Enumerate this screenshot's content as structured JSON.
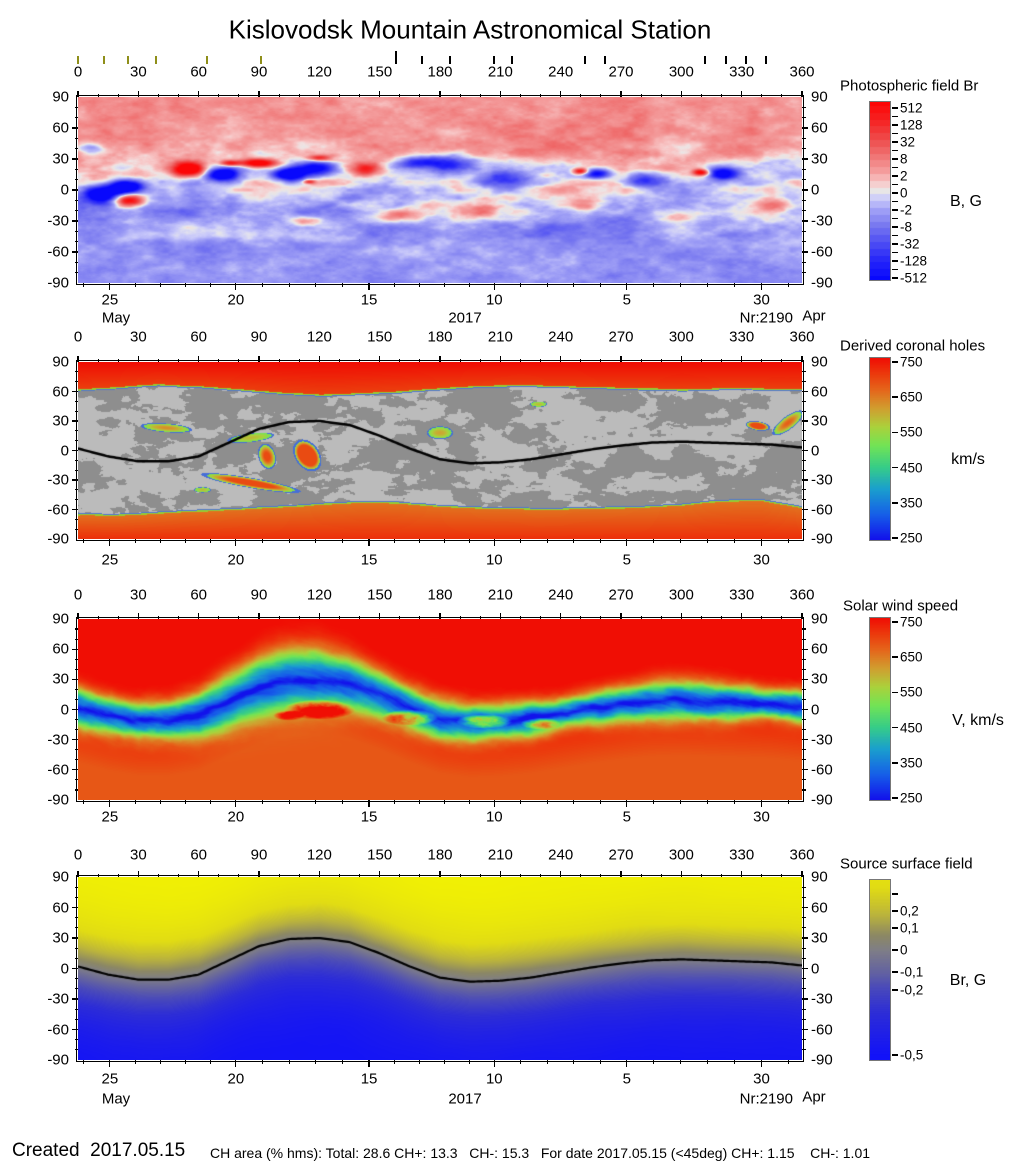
{
  "title": "Kislovodsk Mountain Astronomical Station",
  "axes": {
    "lon_labels": [
      0,
      30,
      60,
      90,
      120,
      150,
      180,
      210,
      240,
      270,
      300,
      330,
      360
    ],
    "lat_labels": [
      90,
      60,
      30,
      0,
      -30,
      -60,
      -90
    ],
    "date_labels": [
      "25",
      "20",
      "15",
      "10",
      "5",
      "30"
    ],
    "date_fracs": [
      0.044,
      0.218,
      0.402,
      0.575,
      0.758,
      0.944
    ],
    "month_left": "May",
    "year": "2017",
    "rotation_label": "Nr:2190",
    "month_right": "Apr"
  },
  "observation_ticks": {
    "olive_lons": [
      0,
      13,
      25,
      39,
      64,
      91
    ],
    "black_lons": [
      158,
      171,
      185,
      207,
      216,
      252,
      262,
      312,
      322,
      332,
      342
    ],
    "tall_black_lon": 158
  },
  "panels": [
    {
      "title": "Photospheric field Br",
      "unit": "B, G",
      "cb_ticks": [
        "512",
        "128",
        "32",
        "8",
        "2",
        "0",
        "-2",
        "-8",
        "-32",
        "-128",
        "-512"
      ]
    },
    {
      "title": "Derived coronal holes",
      "unit": "km/s",
      "cb_ticks": [
        "750",
        "650",
        "550",
        "450",
        "350",
        "250"
      ]
    },
    {
      "title": "Solar wind speed",
      "unit": "V, km/s",
      "cb_ticks": [
        "750",
        "650",
        "550",
        "450",
        "350",
        "250"
      ]
    },
    {
      "title": "Source surface field",
      "unit": "Br, G",
      "cb_ticks": [
        "0,2",
        "0,1",
        "0",
        "-0,1",
        "-0,2",
        "-0,5"
      ]
    }
  ],
  "footer": {
    "created": "Created  2017.05.15",
    "stats": "CH area (% hms): Total: 28.6 CH+: 13.3   CH-: 15.3   For date 2017.05.15 (<45deg) CH+: 1.15    CH-: 1.01"
  },
  "chart_data": [
    {
      "type": "heatmap",
      "title": "Photospheric field Br",
      "x_range": [
        0,
        360
      ],
      "y_range": [
        -90,
        90
      ],
      "colorbar_ticks_G": [
        512,
        128,
        32,
        8,
        2,
        0,
        -2,
        -8,
        -32,
        -128,
        -512
      ],
      "unit": "B, G",
      "colormap": {
        "positive": "#ff0000",
        "zero": "#e8e8e8",
        "negative": "#0000ff"
      },
      "polarity_background": {
        "north": "weak positive (light red)",
        "south": "weak negative (light blue)"
      },
      "active_regions": [
        [
          24,
          3,
          8,
          6,
          -2.8
        ],
        [
          12,
          -4,
          10,
          8,
          -2.6
        ],
        [
          26,
          -10,
          8,
          6,
          2.6
        ],
        [
          6,
          40,
          8,
          6,
          -1.2
        ],
        [
          55,
          20,
          9,
          7,
          3.0
        ],
        [
          72,
          15,
          8,
          6,
          -3.0
        ],
        [
          76,
          26,
          5,
          3,
          1.8
        ],
        [
          90,
          26,
          8,
          4,
          2.6
        ],
        [
          105,
          15,
          8,
          6,
          -3.0
        ],
        [
          118,
          21,
          10,
          7,
          -2.4
        ],
        [
          120,
          31,
          6,
          3,
          1.6
        ],
        [
          143,
          20,
          8,
          6,
          1.8
        ],
        [
          168,
          27,
          10,
          6,
          -1.8
        ],
        [
          115,
          8,
          3,
          2,
          1.5
        ],
        [
          185,
          25,
          12,
          8,
          -1.8
        ],
        [
          212,
          10,
          12,
          8,
          -1.4
        ],
        [
          250,
          18,
          4,
          3,
          2.2
        ],
        [
          258,
          16,
          7,
          5,
          -2.2
        ],
        [
          282,
          10,
          10,
          7,
          -1.4
        ],
        [
          310,
          17,
          4,
          3,
          2.2
        ],
        [
          320,
          16,
          8,
          6,
          -2.2
        ],
        [
          200,
          -20,
          12,
          8,
          1.0
        ],
        [
          250,
          -15,
          10,
          6,
          0.9
        ],
        [
          300,
          -25,
          10,
          7,
          0.8
        ],
        [
          345,
          -15,
          8,
          6,
          0.7
        ],
        [
          160,
          -25,
          10,
          6,
          0.9
        ],
        [
          115,
          -30,
          9,
          5,
          0.8
        ]
      ]
    },
    {
      "type": "heatmap",
      "title": "Derived coronal holes",
      "x_range": [
        0,
        360
      ],
      "y_range": [
        -90,
        90
      ],
      "colorbar_ticks_kms": [
        750,
        650,
        550,
        450,
        350,
        250
      ],
      "unit": "km/s",
      "north_cap_boundary_lat": [
        61,
        63,
        66,
        64,
        61,
        58,
        56,
        57,
        59,
        62,
        64,
        65,
        64,
        63,
        62,
        61,
        62,
        62,
        61
      ],
      "south_cap_boundary_lat": [
        -65,
        -65,
        -63,
        -61,
        -59,
        -57,
        -54,
        -52,
        -53,
        -56,
        -58,
        -59,
        -59,
        -58,
        -57,
        -55,
        -51,
        -50,
        -57
      ],
      "boundary_lon_step": 20,
      "neutral_line": {
        "lon_step": 15,
        "lat": [
          2,
          -6,
          -11,
          -11,
          -6,
          8,
          22,
          29,
          30,
          26,
          15,
          2,
          -9,
          -13,
          -12,
          -9,
          -4,
          1,
          5,
          8,
          9,
          8,
          7,
          6,
          3
        ]
      },
      "equatorial_holes": [
        [
          44,
          23,
          12,
          4,
          -10,
          0.3
        ],
        [
          86,
          13,
          11,
          4,
          15,
          0.2
        ],
        [
          94,
          -6,
          4,
          12,
          5,
          0.5
        ],
        [
          114,
          -5,
          6,
          15,
          10,
          0.9
        ],
        [
          86,
          -33,
          24,
          4.5,
          -20,
          0.6
        ],
        [
          62,
          -40,
          4,
          2.5,
          0,
          0.2
        ],
        [
          180,
          18,
          6,
          6,
          0,
          0.25
        ],
        [
          229,
          47,
          4,
          2.5,
          0,
          0.2
        ],
        [
          338,
          25,
          6,
          4,
          -30,
          0.7
        ],
        [
          353,
          28,
          4,
          13,
          -28,
          0.4
        ]
      ]
    },
    {
      "type": "heatmap",
      "title": "Solar wind speed",
      "x_range": [
        0,
        360
      ],
      "y_range": [
        -90,
        90
      ],
      "colorbar_ticks_kms": [
        750,
        650,
        550,
        450,
        350,
        250
      ],
      "unit": "V, km/s",
      "slow_band": {
        "follows": "neutral line",
        "halfwidth_base_deg": 16,
        "widen_center_lon": 105,
        "widen_extra_deg": 14
      },
      "fast_intrusions": [
        [
          120,
          0,
          18,
          10,
          300
        ],
        [
          165,
          -8,
          14,
          8,
          260
        ],
        [
          202,
          -12,
          14,
          7,
          280
        ],
        [
          230,
          -14,
          10,
          6,
          260
        ],
        [
          105,
          -6,
          8,
          5,
          220
        ]
      ]
    },
    {
      "type": "heatmap",
      "title": "Source surface field",
      "x_range": [
        0,
        360
      ],
      "y_range": [
        -90,
        90
      ],
      "colorbar_ticks_G": [
        0.2,
        0.1,
        0,
        -0.1,
        -0.2,
        -0.5
      ],
      "unit": "Br, G",
      "polarity": "positive (yellow) above neutral line, negative (blue) below"
    }
  ]
}
